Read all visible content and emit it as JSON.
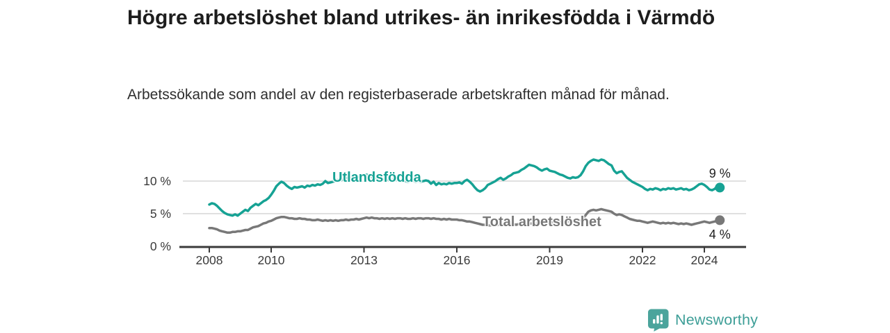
{
  "chart_data": {
    "type": "line",
    "title": "Högre arbetslöshet bland utrikes- än inrikesfödda i Värmdö",
    "subtitle": "Arbetssökande som andel av den registerbaserade arbetskraften månad för månad.",
    "frequency": "monthly",
    "x_start_year": 2008,
    "x_end_label": "mid 2024",
    "ylim": [
      0,
      14
    ],
    "grid": "horizontal",
    "grid_color": "#cdcdcd",
    "axis_color": "#3a3a3a",
    "yticks": [
      {
        "value": 0,
        "label": "0 %"
      },
      {
        "value": 5,
        "label": "5 %"
      },
      {
        "value": 10,
        "label": "10 %"
      }
    ],
    "xticks": [
      {
        "year": 2008,
        "label": "2008"
      },
      {
        "year": 2010,
        "label": "2010"
      },
      {
        "year": 2013,
        "label": "2013"
      },
      {
        "year": 2016,
        "label": "2016"
      },
      {
        "year": 2019,
        "label": "2019"
      },
      {
        "year": 2022,
        "label": "2022"
      },
      {
        "year": 2024,
        "label": "2024"
      }
    ],
    "series": [
      {
        "name": "Utlandsfödda",
        "color": "#16a294",
        "end_label": "9 %",
        "values": [
          6.4,
          6.6,
          6.5,
          6.2,
          5.8,
          5.4,
          5.1,
          4.9,
          4.8,
          4.7,
          4.9,
          4.7,
          5.0,
          5.3,
          5.6,
          5.4,
          5.9,
          6.2,
          6.5,
          6.3,
          6.6,
          6.9,
          7.1,
          7.4,
          7.9,
          8.5,
          9.2,
          9.6,
          9.9,
          9.7,
          9.3,
          9.0,
          8.8,
          9.1,
          9.0,
          9.1,
          9.2,
          9.0,
          9.3,
          9.2,
          9.4,
          9.3,
          9.5,
          9.4,
          9.6,
          10.0,
          9.7,
          9.8,
          9.9,
          10.0,
          10.2,
          10.1,
          10.3,
          10.5,
          10.4,
          10.5,
          10.6,
          10.7,
          10.6,
          10.8,
          10.9,
          11.0,
          10.8,
          10.6,
          10.4,
          10.5,
          10.3,
          10.2,
          10.3,
          10.2,
          10.1,
          10.2,
          10.1,
          10.2,
          10.0,
          10.1,
          10.0,
          9.9,
          10.0,
          10.1,
          9.9,
          10.0,
          9.9,
          10.0,
          10.1,
          10.0,
          9.6,
          9.9,
          9.4,
          9.7,
          9.5,
          9.6,
          9.5,
          9.7,
          9.6,
          9.7,
          9.7,
          9.8,
          9.6,
          10.0,
          10.2,
          9.9,
          9.5,
          9.0,
          8.6,
          8.4,
          8.6,
          8.9,
          9.4,
          9.6,
          9.8,
          10.0,
          10.3,
          10.5,
          10.2,
          10.4,
          10.7,
          10.9,
          11.2,
          11.3,
          11.4,
          11.7,
          11.9,
          12.2,
          12.5,
          12.4,
          12.3,
          12.1,
          11.8,
          11.6,
          11.8,
          11.9,
          11.6,
          11.5,
          11.4,
          11.2,
          11.0,
          10.9,
          10.7,
          10.5,
          10.4,
          10.6,
          10.5,
          10.6,
          10.9,
          11.5,
          12.3,
          12.8,
          13.1,
          13.3,
          13.2,
          13.1,
          13.3,
          13.2,
          12.9,
          12.6,
          12.4,
          11.6,
          11.2,
          11.4,
          11.5,
          11.0,
          10.5,
          10.2,
          9.9,
          9.7,
          9.5,
          9.3,
          9.1,
          8.8,
          8.6,
          8.8,
          8.7,
          8.9,
          8.8,
          8.6,
          8.8,
          8.7,
          8.9,
          8.8,
          8.9,
          8.7,
          8.8,
          8.9,
          8.7,
          8.8,
          8.6,
          8.7,
          8.9,
          9.2,
          9.5,
          9.6,
          9.4,
          9.1,
          8.7,
          8.6,
          8.8,
          9.2,
          9.0
        ]
      },
      {
        "name": "Total arbetslöshet",
        "color": "#787878",
        "end_label": "4 %",
        "values": [
          2.8,
          2.8,
          2.7,
          2.6,
          2.4,
          2.3,
          2.2,
          2.1,
          2.1,
          2.2,
          2.2,
          2.3,
          2.3,
          2.4,
          2.5,
          2.5,
          2.7,
          2.9,
          3.0,
          3.1,
          3.3,
          3.5,
          3.6,
          3.8,
          3.9,
          4.1,
          4.3,
          4.4,
          4.5,
          4.5,
          4.4,
          4.3,
          4.3,
          4.2,
          4.2,
          4.3,
          4.2,
          4.2,
          4.1,
          4.1,
          4.0,
          4.0,
          4.1,
          4.0,
          3.9,
          4.0,
          3.9,
          4.0,
          3.9,
          4.0,
          3.9,
          4.0,
          4.0,
          4.1,
          4.0,
          4.1,
          4.1,
          4.2,
          4.1,
          4.2,
          4.3,
          4.4,
          4.3,
          4.4,
          4.3,
          4.3,
          4.2,
          4.3,
          4.2,
          4.3,
          4.2,
          4.3,
          4.2,
          4.3,
          4.3,
          4.2,
          4.3,
          4.2,
          4.2,
          4.3,
          4.2,
          4.3,
          4.3,
          4.2,
          4.3,
          4.3,
          4.2,
          4.3,
          4.2,
          4.2,
          4.1,
          4.2,
          4.1,
          4.2,
          4.1,
          4.1,
          4.1,
          4.0,
          4.0,
          3.9,
          3.8,
          3.8,
          3.7,
          3.6,
          3.5,
          3.4,
          3.3,
          3.3,
          3.2,
          3.2,
          3.3,
          3.2,
          3.3,
          3.3,
          3.2,
          3.3,
          3.3,
          3.4,
          3.4,
          3.3,
          3.4,
          3.4,
          3.5,
          3.4,
          3.5,
          3.5,
          3.4,
          3.5,
          3.5,
          3.6,
          3.5,
          3.6,
          3.6,
          3.7,
          3.6,
          3.7,
          3.7,
          3.8,
          3.7,
          3.8,
          3.8,
          3.9,
          3.8,
          3.9,
          4.0,
          4.2,
          4.8,
          5.3,
          5.5,
          5.6,
          5.5,
          5.6,
          5.7,
          5.6,
          5.5,
          5.4,
          5.3,
          5.0,
          4.8,
          4.9,
          4.8,
          4.6,
          4.4,
          4.2,
          4.1,
          4.0,
          3.9,
          3.9,
          3.8,
          3.7,
          3.6,
          3.7,
          3.8,
          3.7,
          3.6,
          3.5,
          3.6,
          3.5,
          3.6,
          3.5,
          3.6,
          3.5,
          3.4,
          3.5,
          3.4,
          3.5,
          3.4,
          3.3,
          3.4,
          3.5,
          3.6,
          3.7,
          3.8,
          3.7,
          3.6,
          3.7,
          3.8,
          3.9,
          4.0
        ]
      }
    ],
    "legend_position": "inline-on-lines"
  },
  "footer": {
    "brand": "Newsworthy",
    "logo_icon": "bar-chart-speech-bubble-icon",
    "brand_color": "#3d9e97"
  }
}
